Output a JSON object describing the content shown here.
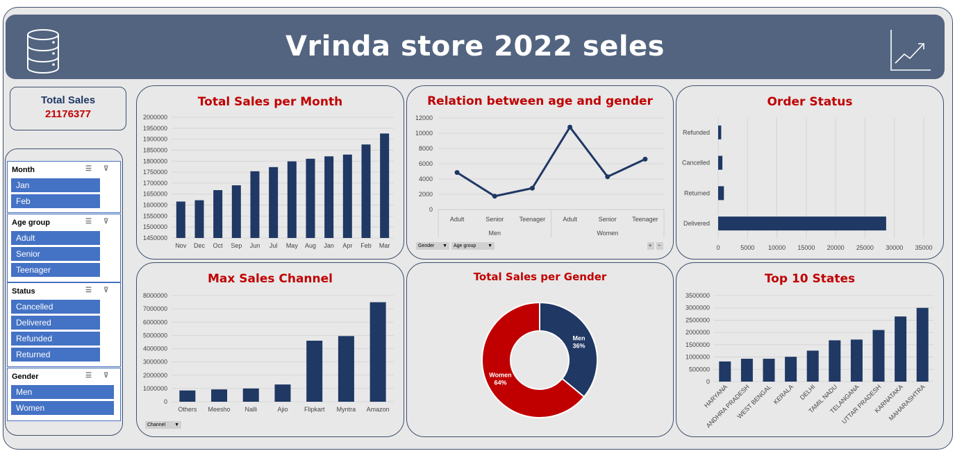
{
  "header": {
    "title": "Vrinda store 2022 seles",
    "icon_left": "database-icon",
    "icon_right": "trend-up-icon"
  },
  "total_sales": {
    "label": "Total Sales",
    "value": "21176377"
  },
  "slicers": [
    {
      "title": "Month",
      "items": [
        "Jan",
        "Feb"
      ]
    },
    {
      "title": "Age group",
      "items": [
        "Adult",
        "Senior",
        "Teenager"
      ]
    },
    {
      "title": "Status",
      "items": [
        "Cancelled",
        "Delivered",
        "Refunded",
        "Returned"
      ]
    },
    {
      "title": "Gender",
      "items": [
        "Men",
        "Women"
      ]
    }
  ],
  "filters": {
    "gender": "Gender",
    "age_group": "Age group",
    "channel": "Channel"
  },
  "colors": {
    "navy": "#1f3864",
    "red": "#c00000",
    "header": "#52647f"
  },
  "chart_data": [
    {
      "type": "bar",
      "title": "Total Sales per Month",
      "categories": [
        "Nov",
        "Dec",
        "Oct",
        "Sep",
        "Jun",
        "Jul",
        "May",
        "Aug",
        "Jan",
        "Apr",
        "Feb",
        "Mar"
      ],
      "values": [
        1616000,
        1622000,
        1668000,
        1690000,
        1754000,
        1773000,
        1799000,
        1811000,
        1822000,
        1830000,
        1876000,
        1926000
      ],
      "yticks": [
        "2000000",
        "1950000",
        "1900000",
        "1850000",
        "1800000",
        "1750000",
        "1700000",
        "1650000",
        "1600000",
        "1550000",
        "1500000",
        "1450000"
      ],
      "ylim": [
        1450000,
        2000000
      ]
    },
    {
      "type": "line",
      "title": "Relation between age and gender",
      "categories": [
        "Adult",
        "Senior",
        "Teenager",
        "Adult",
        "Senior",
        "Teenager"
      ],
      "groups": [
        "Men",
        "Women"
      ],
      "values": [
        4850,
        1750,
        2800,
        10800,
        4300,
        6600
      ],
      "yticks": [
        "12000",
        "10000",
        "8000",
        "6000",
        "4000",
        "2000",
        "0"
      ],
      "ylim": [
        0,
        12000
      ]
    },
    {
      "type": "bar",
      "orientation": "horizontal",
      "title": "Order Status",
      "categories": [
        "Refunded",
        "Cancelled",
        "Returned",
        "Delivered"
      ],
      "values": [
        520,
        720,
        980,
        28600
      ],
      "xticks": [
        "0",
        "5000",
        "10000",
        "15000",
        "20000",
        "25000",
        "30000",
        "35000"
      ],
      "xlim": [
        0,
        35000
      ]
    },
    {
      "type": "bar",
      "title": "Max Sales Channel",
      "categories": [
        "Others",
        "Meesho",
        "Nalli",
        "Ajio",
        "Flipkart",
        "Myntra",
        "Amazon"
      ],
      "values": [
        850000,
        930000,
        1000000,
        1300000,
        4600000,
        4950000,
        7500000
      ],
      "yticks": [
        "8000000",
        "7000000",
        "6000000",
        "5000000",
        "4000000",
        "3000000",
        "2000000",
        "1000000",
        "0"
      ],
      "ylim": [
        0,
        8000000
      ]
    },
    {
      "type": "pie",
      "title": "Total Sales per Gender",
      "slices": [
        {
          "name": "Men",
          "label": "36%",
          "value": 36
        },
        {
          "name": "Women",
          "label": "64%",
          "value": 64
        }
      ]
    },
    {
      "type": "bar",
      "title": "Top 10 States",
      "categories": [
        "HARYANA",
        "ANDHRA PRADESH",
        "WEST BENGAL",
        "KERALA",
        "DELHI",
        "TAMIL NADU",
        "TELANGANA",
        "UTTAR PRADESH",
        "KARNATAKA",
        "MAHARASHTRA"
      ],
      "values": [
        820000,
        930000,
        930000,
        1010000,
        1260000,
        1680000,
        1710000,
        2100000,
        2650000,
        3000000
      ],
      "yticks": [
        "3500000",
        "3000000",
        "2500000",
        "2000000",
        "1500000",
        "1000000",
        "500000",
        "0"
      ],
      "ylim": [
        0,
        3500000
      ]
    }
  ]
}
